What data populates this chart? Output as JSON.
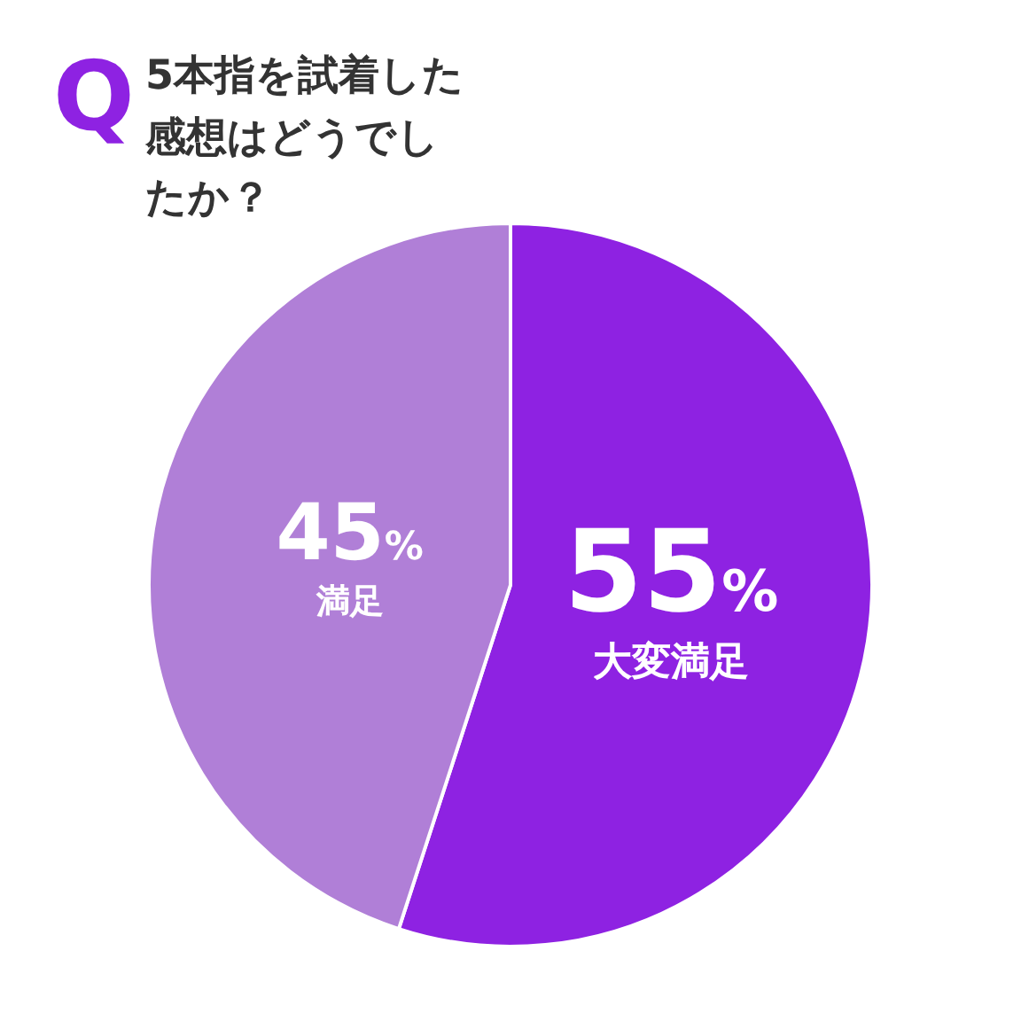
{
  "chart_data": {
    "type": "pie",
    "title": "5本指を試着した感想はどうでしたか？",
    "annotations": [
      "Q"
    ],
    "categories": [
      "大変満足",
      "満足"
    ],
    "values": [
      55,
      45
    ],
    "colors": [
      "#8e22e2",
      "#b07fd7"
    ],
    "value_labels": [
      "55%",
      "45%"
    ],
    "legend": false
  }
}
